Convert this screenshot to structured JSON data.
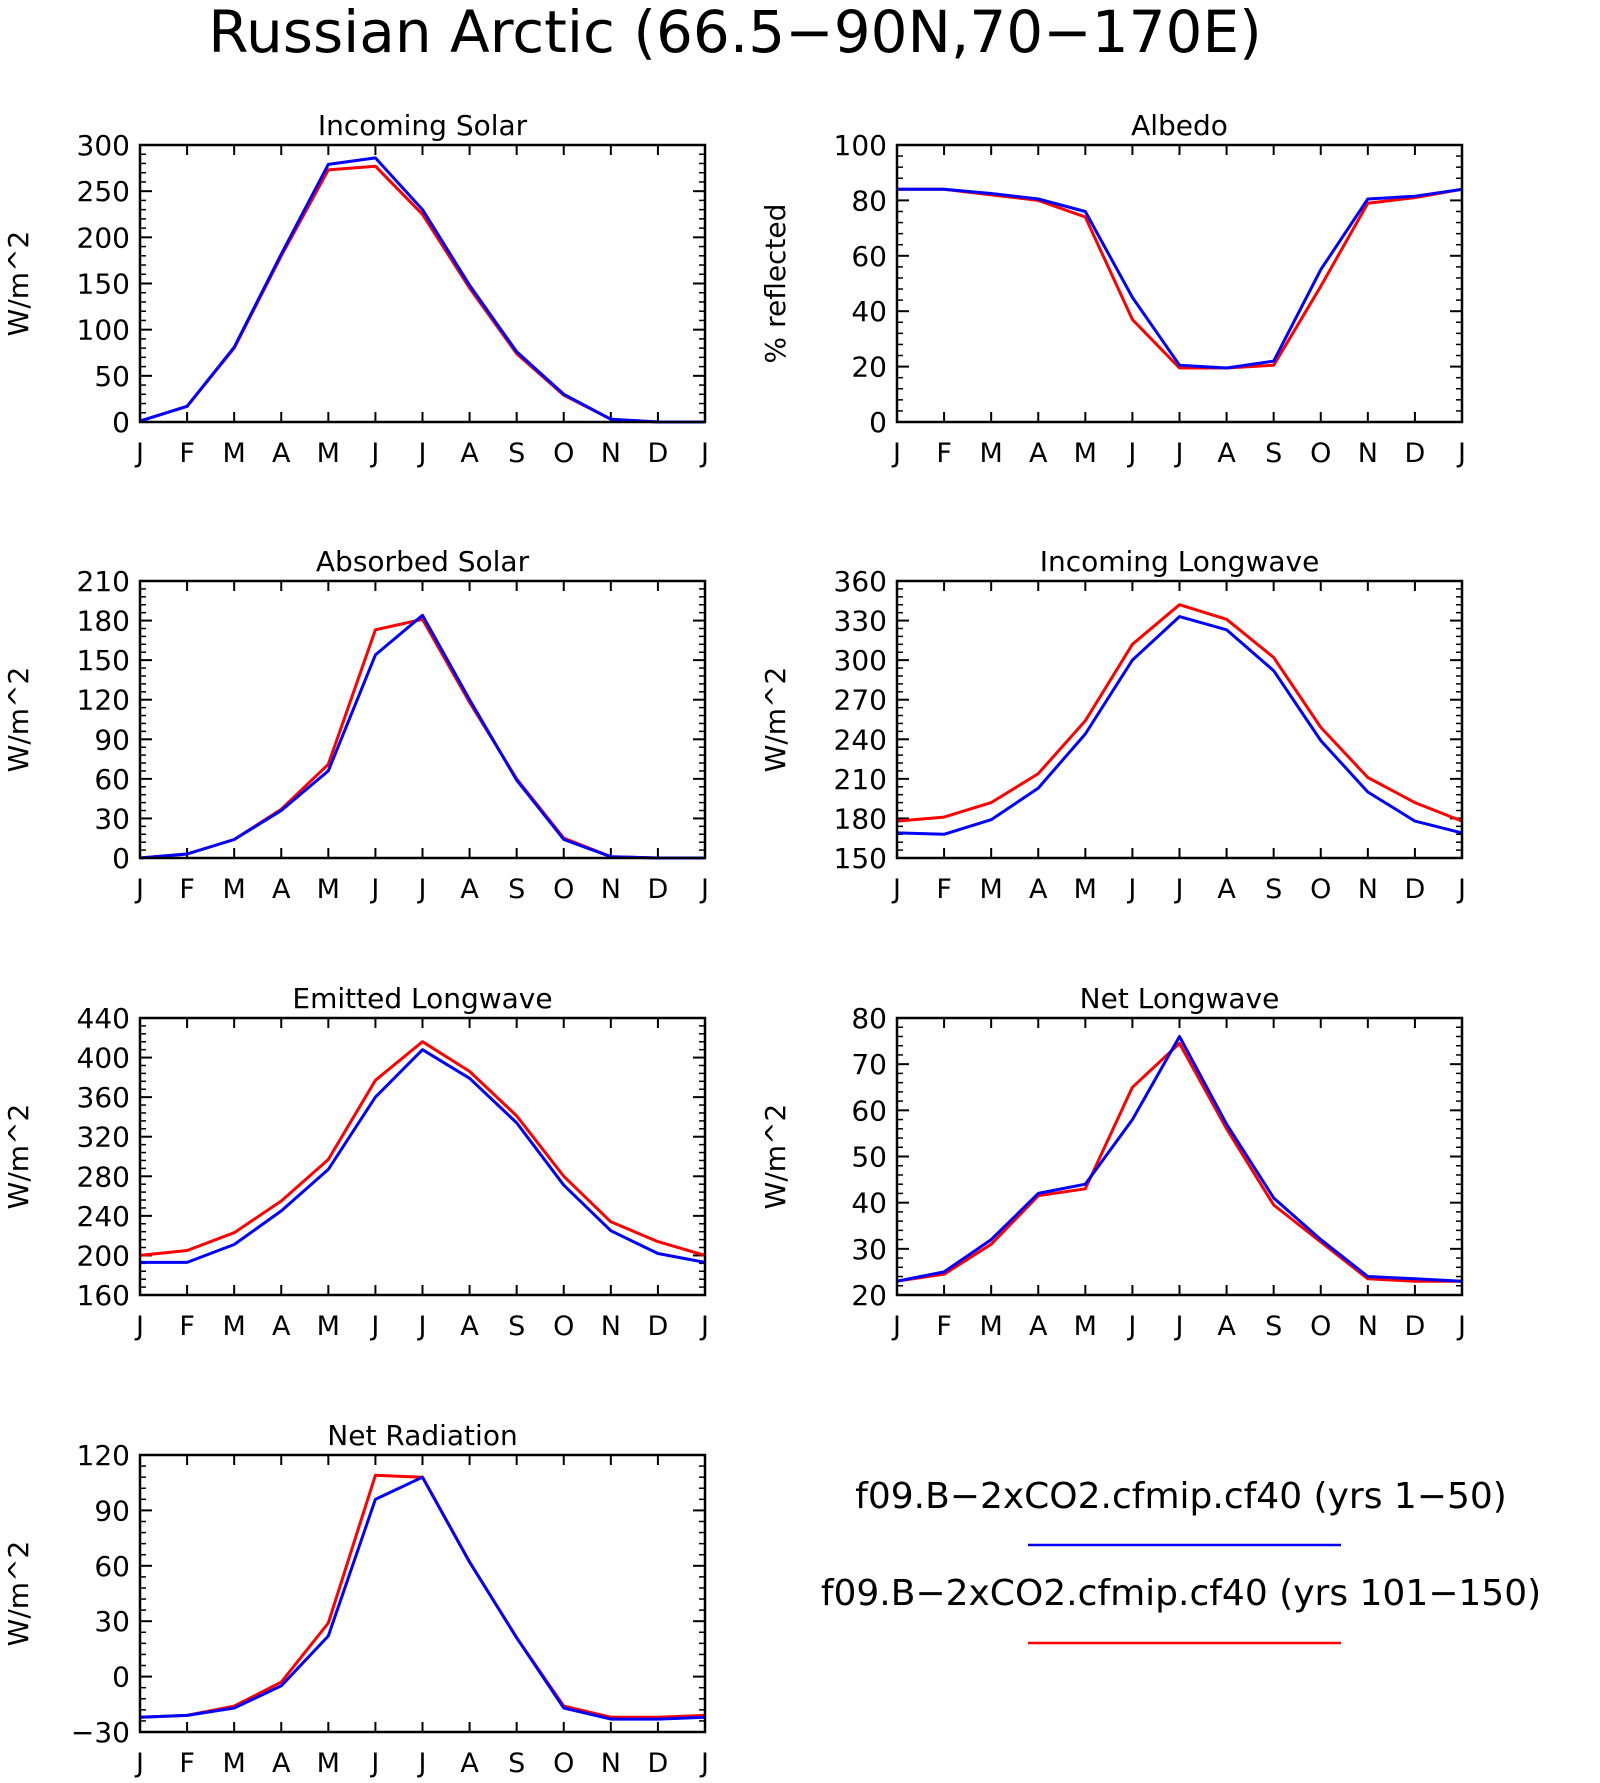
{
  "title": "Russian Arctic (66.5−90N,70−170E)",
  "legend": {
    "entries": [
      {
        "label": "f09.B−2xCO2.cfmip.cf40 (yrs 1−50)",
        "color": "#0000ff"
      },
      {
        "label": "f09.B−2xCO2.cfmip.cf40 (yrs 101−150)",
        "color": "#ff0000"
      }
    ]
  },
  "chart_data": [
    {
      "type": "line",
      "title": "Incoming Solar",
      "ylabel": "W/m^2",
      "categories": [
        "J",
        "F",
        "M",
        "A",
        "M",
        "J",
        "J",
        "A",
        "S",
        "O",
        "N",
        "D",
        "J"
      ],
      "ylim": [
        0,
        300
      ],
      "yticks": [
        0,
        50,
        100,
        150,
        200,
        250,
        300
      ],
      "series": [
        {
          "name": "f09.B−2xCO2.cfmip.cf40 (yrs 101−150)",
          "color": "#ff0000",
          "values": [
            1,
            17,
            80,
            180,
            273,
            277,
            225,
            145,
            74,
            29,
            3,
            0,
            0
          ]
        },
        {
          "name": "f09.B−2xCO2.cfmip.cf40 (yrs 1−50)",
          "color": "#0000ff",
          "values": [
            1,
            17,
            81,
            182,
            279,
            286,
            230,
            148,
            76,
            30,
            3,
            0,
            0
          ]
        }
      ]
    },
    {
      "type": "line",
      "title": "Albedo",
      "ylabel": "% reflected",
      "categories": [
        "J",
        "F",
        "M",
        "A",
        "M",
        "J",
        "J",
        "A",
        "S",
        "O",
        "N",
        "D",
        "J"
      ],
      "ylim": [
        0,
        100
      ],
      "yticks": [
        0,
        20,
        40,
        60,
        80,
        100
      ],
      "series": [
        {
          "name": "f09.B−2xCO2.cfmip.cf40 (yrs 101−150)",
          "color": "#ff0000",
          "values": [
            84,
            84,
            82,
            80,
            74,
            37,
            19.5,
            19.5,
            20.5,
            49,
            79,
            81,
            84
          ]
        },
        {
          "name": "f09.B−2xCO2.cfmip.cf40 (yrs 1−50)",
          "color": "#0000ff",
          "values": [
            84,
            84,
            82.5,
            80.5,
            76,
            45,
            20.5,
            19.5,
            22,
            55,
            80.5,
            81.5,
            84
          ]
        }
      ]
    },
    {
      "type": "line",
      "title": "Absorbed Solar",
      "ylabel": "W/m^2",
      "categories": [
        "J",
        "F",
        "M",
        "A",
        "M",
        "J",
        "J",
        "A",
        "S",
        "O",
        "N",
        "D",
        "J"
      ],
      "ylim": [
        0,
        210
      ],
      "yticks": [
        0,
        30,
        60,
        90,
        120,
        150,
        180,
        210
      ],
      "series": [
        {
          "name": "f09.B−2xCO2.cfmip.cf40 (yrs 101−150)",
          "color": "#ff0000",
          "values": [
            0,
            3,
            14,
            37,
            71,
            173,
            181,
            118,
            60,
            15,
            1,
            0,
            0
          ]
        },
        {
          "name": "f09.B−2xCO2.cfmip.cf40 (yrs 1−50)",
          "color": "#0000ff",
          "values": [
            0,
            3,
            14,
            36,
            66,
            154,
            184,
            120,
            59,
            14,
            1,
            0,
            0
          ]
        }
      ]
    },
    {
      "type": "line",
      "title": "Incoming Longwave",
      "ylabel": "W/m^2",
      "categories": [
        "J",
        "F",
        "M",
        "A",
        "M",
        "J",
        "J",
        "A",
        "S",
        "O",
        "N",
        "D",
        "J"
      ],
      "ylim": [
        150,
        360
      ],
      "yticks": [
        150,
        180,
        210,
        240,
        270,
        300,
        330,
        360
      ],
      "series": [
        {
          "name": "f09.B−2xCO2.cfmip.cf40 (yrs 101−150)",
          "color": "#ff0000",
          "values": [
            178,
            181,
            192,
            214,
            254,
            312,
            342,
            331,
            302,
            249,
            211,
            192,
            178
          ]
        },
        {
          "name": "f09.B−2xCO2.cfmip.cf40 (yrs 1−50)",
          "color": "#0000ff",
          "values": [
            169,
            168,
            179,
            203,
            244,
            300,
            333,
            323,
            292,
            239,
            200,
            178,
            169
          ]
        }
      ]
    },
    {
      "type": "line",
      "title": "Emitted Longwave",
      "ylabel": "W/m^2",
      "categories": [
        "J",
        "F",
        "M",
        "A",
        "M",
        "J",
        "J",
        "A",
        "S",
        "O",
        "N",
        "D",
        "J"
      ],
      "ylim": [
        160,
        440
      ],
      "yticks": [
        160,
        200,
        240,
        280,
        320,
        360,
        400,
        440
      ],
      "series": [
        {
          "name": "f09.B−2xCO2.cfmip.cf40 (yrs 101−150)",
          "color": "#ff0000",
          "values": [
            200,
            205,
            223,
            255,
            297,
            377,
            416,
            386,
            341,
            280,
            234,
            214,
            200
          ]
        },
        {
          "name": "f09.B−2xCO2.cfmip.cf40 (yrs 1−50)",
          "color": "#0000ff",
          "values": [
            193,
            193,
            211,
            245,
            287,
            360,
            408,
            379,
            334,
            271,
            225,
            202,
            193
          ]
        }
      ]
    },
    {
      "type": "line",
      "title": "Net Longwave",
      "ylabel": "W/m^2",
      "categories": [
        "J",
        "F",
        "M",
        "A",
        "M",
        "J",
        "J",
        "A",
        "S",
        "O",
        "N",
        "D",
        "J"
      ],
      "ylim": [
        20,
        80
      ],
      "yticks": [
        20,
        30,
        40,
        50,
        60,
        70,
        80
      ],
      "series": [
        {
          "name": "f09.B−2xCO2.cfmip.cf40 (yrs 101−150)",
          "color": "#ff0000",
          "values": [
            23,
            24.5,
            31,
            41.5,
            43,
            65,
            74.5,
            56,
            39.5,
            31.5,
            23.5,
            23,
            23
          ]
        },
        {
          "name": "f09.B−2xCO2.cfmip.cf40 (yrs 1−50)",
          "color": "#0000ff",
          "values": [
            23,
            25,
            32,
            42,
            44,
            58,
            76,
            57,
            41,
            32,
            24,
            23.5,
            23
          ]
        }
      ]
    },
    {
      "type": "line",
      "title": "Net Radiation",
      "ylabel": "W/m^2",
      "categories": [
        "J",
        "F",
        "M",
        "A",
        "M",
        "J",
        "J",
        "A",
        "S",
        "O",
        "N",
        "D",
        "J"
      ],
      "ylim": [
        -30,
        120
      ],
      "yticks": [
        -30,
        0,
        30,
        60,
        90,
        120
      ],
      "series": [
        {
          "name": "f09.B−2xCO2.cfmip.cf40 (yrs 101−150)",
          "color": "#ff0000",
          "values": [
            -22,
            -21,
            -16,
            -3,
            29,
            109,
            108,
            62,
            21,
            -16,
            -22,
            -22,
            -21
          ]
        },
        {
          "name": "f09.B−2xCO2.cfmip.cf40 (yrs 1−50)",
          "color": "#0000ff",
          "values": [
            -22,
            -21,
            -17,
            -5,
            22,
            96,
            108,
            62,
            21,
            -17,
            -23,
            -23,
            -22
          ]
        }
      ]
    }
  ]
}
